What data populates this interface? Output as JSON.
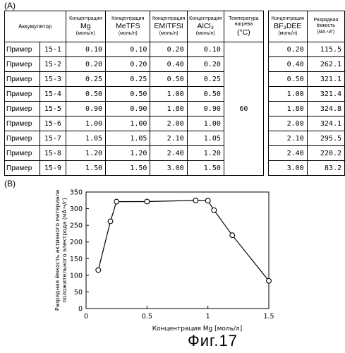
{
  "table": {
    "label": "(A)",
    "headers": {
      "battery": "Аккумулятор",
      "mg": {
        "top": "Концентрация",
        "main": "Mg",
        "unit": "(моль/л)"
      },
      "metfs": {
        "top": "Концентрация",
        "main": "MeTFS",
        "unit": "(моль/л)"
      },
      "emitfsi": {
        "top": "Концентрация",
        "main": "EMITFSI",
        "unit": "(моль/л)"
      },
      "alcl3": {
        "top": "Концентрация",
        "main": "AlCl₃",
        "unit": "(моль/л)"
      },
      "temp": {
        "top": "Температура нагрева",
        "unit": "(°C)"
      },
      "bf3dee": {
        "top": "Концентрация",
        "main": "BF₃DEE",
        "unit": "(моль/л)"
      },
      "capacity": {
        "top": "Разрядная ёмкость",
        "unit": "(мА·ч/г)"
      }
    },
    "temperature": "60",
    "rows": [
      {
        "label": "Пример",
        "num": "15-1",
        "mg": "0.10",
        "metfs": "0.10",
        "emitfsi": "0.20",
        "alcl3": "0.10",
        "bf3dee": "0.20",
        "capacity": "115.5"
      },
      {
        "label": "Пример",
        "num": "15-2",
        "mg": "0.20",
        "metfs": "0.20",
        "emitfsi": "0.40",
        "alcl3": "0.20",
        "bf3dee": "0.40",
        "capacity": "262.1"
      },
      {
        "label": "Пример",
        "num": "15-3",
        "mg": "0.25",
        "metfs": "0.25",
        "emitfsi": "0.50",
        "alcl3": "0.25",
        "bf3dee": "0.50",
        "capacity": "321.1"
      },
      {
        "label": "Пример",
        "num": "15-4",
        "mg": "0.50",
        "metfs": "0.50",
        "emitfsi": "1.00",
        "alcl3": "0.50",
        "bf3dee": "1.00",
        "capacity": "321.4"
      },
      {
        "label": "Пример",
        "num": "15-5",
        "mg": "0.90",
        "metfs": "0.90",
        "emitfsi": "1.80",
        "alcl3": "0.90",
        "bf3dee": "1.80",
        "capacity": "324.8"
      },
      {
        "label": "Пример",
        "num": "15-6",
        "mg": "1.00",
        "metfs": "1.00",
        "emitfsi": "2.00",
        "alcl3": "1.00",
        "bf3dee": "2.00",
        "capacity": "324.1"
      },
      {
        "label": "Пример",
        "num": "15-7",
        "mg": "1.05",
        "metfs": "1.05",
        "emitfsi": "2.10",
        "alcl3": "1.05",
        "bf3dee": "2.10",
        "capacity": "295.5"
      },
      {
        "label": "Пример",
        "num": "15-8",
        "mg": "1.20",
        "metfs": "1.20",
        "emitfsi": "2.40",
        "alcl3": "1.20",
        "bf3dee": "2.40",
        "capacity": "220.2"
      },
      {
        "label": "Пример",
        "num": "15-9",
        "mg": "1.50",
        "metfs": "1.50",
        "emitfsi": "3.00",
        "alcl3": "1.50",
        "bf3dee": "3.00",
        "capacity": "83.2"
      }
    ]
  },
  "chart_label": "(B)",
  "chart_data": {
    "type": "line",
    "xlabel": "Концентрация Mg [моль/л]",
    "ylabel": "Разрядная ёмкость активного материала положительного электрода (мА·ч/г)",
    "xlim": [
      0,
      1.5
    ],
    "ylim": [
      0,
      350
    ],
    "xticks": [
      "0",
      "0.5",
      "1",
      "1.5"
    ],
    "yticks": [
      "0",
      "50",
      "100",
      "150",
      "200",
      "250",
      "300",
      "350"
    ],
    "series": [
      {
        "x": [
          0.1,
          0.2,
          0.25,
          0.5,
          0.9,
          1.0,
          1.05,
          1.2,
          1.5
        ],
        "y": [
          115.5,
          262.1,
          321.1,
          321.4,
          324.8,
          324.1,
          295.5,
          220.2,
          83.2
        ]
      }
    ],
    "marker": "open-circle",
    "grid": false
  },
  "caption": "Фиг.17"
}
